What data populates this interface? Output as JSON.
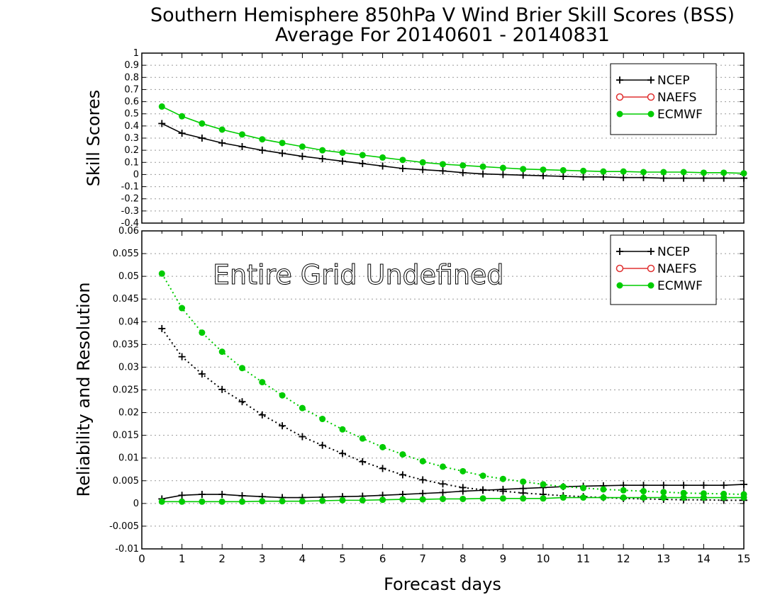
{
  "title_line1": "Southern Hemisphere 850hPa V Wind Brier Skill Scores (BSS)",
  "title_line2": "Average For 20140601 - 20140831",
  "colors": {
    "NCEP": "#000000",
    "NAEFS": "#e03030",
    "ECMWF": "#00cc00"
  },
  "chart_data": [
    {
      "type": "line",
      "ylabel": "Skill Scores",
      "xlabel": "",
      "xlim": [
        0,
        15
      ],
      "ylim": [
        -0.4,
        1
      ],
      "yticks": [
        "-0.4",
        "-0.3",
        "-0.2",
        "-0.1",
        "0",
        "0.1",
        "0.2",
        "0.3",
        "0.4",
        "0.5",
        "0.6",
        "0.7",
        "0.8",
        "0.9",
        "1"
      ],
      "legend": {
        "position": "top-right",
        "entries": [
          "NCEP",
          "NAEFS",
          "ECMWF"
        ]
      },
      "grid": true,
      "x": [
        0.5,
        1,
        1.5,
        2,
        2.5,
        3,
        3.5,
        4,
        4.5,
        5,
        5.5,
        6,
        6.5,
        7,
        7.5,
        8,
        8.5,
        9,
        9.5,
        10,
        10.5,
        11,
        11.5,
        12,
        12.5,
        13,
        13.5,
        14,
        14.5,
        15
      ],
      "series": [
        {
          "name": "NCEP",
          "style": "solid-plus",
          "values": [
            0.42,
            0.34,
            0.3,
            0.26,
            0.23,
            0.2,
            0.175,
            0.15,
            0.13,
            0.11,
            0.09,
            0.07,
            0.05,
            0.04,
            0.03,
            0.015,
            0.005,
            0.0,
            -0.005,
            -0.01,
            -0.015,
            -0.02,
            -0.02,
            -0.025,
            -0.025,
            -0.03,
            -0.03,
            -0.03,
            -0.03,
            -0.03
          ]
        },
        {
          "name": "ECMWF",
          "style": "solid-dot",
          "values": [
            0.56,
            0.48,
            0.42,
            0.37,
            0.33,
            0.29,
            0.26,
            0.23,
            0.2,
            0.18,
            0.16,
            0.14,
            0.12,
            0.1,
            0.085,
            0.075,
            0.065,
            0.055,
            0.045,
            0.04,
            0.035,
            0.03,
            0.025,
            0.025,
            0.02,
            0.02,
            0.02,
            0.015,
            0.015,
            0.01
          ]
        }
      ]
    },
    {
      "type": "line",
      "ylabel": "Reliability and Resolution",
      "xlabel": "Forecast days",
      "xlim": [
        0,
        15
      ],
      "ylim": [
        -0.01,
        0.06
      ],
      "yticks": [
        "-0.01",
        "-0.005",
        "0",
        "0.005",
        "0.01",
        "0.015",
        "0.02",
        "0.025",
        "0.03",
        "0.035",
        "0.04",
        "0.045",
        "0.05",
        "0.055",
        "0.06"
      ],
      "xticks": [
        "0",
        "1",
        "2",
        "3",
        "4",
        "5",
        "6",
        "7",
        "8",
        "9",
        "10",
        "11",
        "12",
        "13",
        "14",
        "15"
      ],
      "annotation": "Entire Grid Undefined",
      "legend": {
        "position": "top-right",
        "entries": [
          "NCEP",
          "NAEFS",
          "ECMWF"
        ]
      },
      "grid": true,
      "x": [
        0.5,
        1,
        1.5,
        2,
        2.5,
        3,
        3.5,
        4,
        4.5,
        5,
        5.5,
        6,
        6.5,
        7,
        7.5,
        8,
        8.5,
        9,
        9.5,
        10,
        10.5,
        11,
        11.5,
        12,
        12.5,
        13,
        13.5,
        14,
        14.5,
        15
      ],
      "series": [
        {
          "name": "NCEP",
          "kind": "reliability",
          "style": "solid-plus",
          "values": [
            0.001,
            0.0018,
            0.002,
            0.002,
            0.0017,
            0.0015,
            0.0013,
            0.0013,
            0.0014,
            0.0015,
            0.0016,
            0.0018,
            0.002,
            0.0022,
            0.0024,
            0.0027,
            0.0029,
            0.0031,
            0.0033,
            0.0035,
            0.0037,
            0.0038,
            0.0039,
            0.004,
            0.004,
            0.004,
            0.004,
            0.004,
            0.004,
            0.0042
          ]
        },
        {
          "name": "NCEP",
          "kind": "resolution",
          "style": "dotted-plus",
          "values": [
            0.0385,
            0.0323,
            0.0285,
            0.0251,
            0.0224,
            0.0195,
            0.0171,
            0.0147,
            0.0128,
            0.011,
            0.0092,
            0.0077,
            0.0063,
            0.0052,
            0.0043,
            0.0035,
            0.003,
            0.0027,
            0.0023,
            0.002,
            0.0017,
            0.0015,
            0.0013,
            0.0011,
            0.001,
            0.0009,
            0.0008,
            0.0008,
            0.0007,
            0.0007
          ]
        },
        {
          "name": "ECMWF",
          "kind": "reliability",
          "style": "solid-dot",
          "values": [
            0.0004,
            0.0004,
            0.0004,
            0.0004,
            0.0004,
            0.0005,
            0.0005,
            0.0005,
            0.0006,
            0.0007,
            0.0007,
            0.0008,
            0.0009,
            0.0009,
            0.001,
            0.001,
            0.0011,
            0.0011,
            0.0011,
            0.0011,
            0.0013,
            0.0013,
            0.0013,
            0.0013,
            0.0013,
            0.0013,
            0.0013,
            0.0013,
            0.0013,
            0.0013
          ]
        },
        {
          "name": "ECMWF",
          "kind": "resolution",
          "style": "dotted-dot",
          "values": [
            0.0506,
            0.043,
            0.0376,
            0.0334,
            0.0298,
            0.0267,
            0.0238,
            0.021,
            0.0186,
            0.0163,
            0.0143,
            0.0124,
            0.0108,
            0.0093,
            0.0081,
            0.0071,
            0.0061,
            0.0054,
            0.0048,
            0.0042,
            0.0037,
            0.0034,
            0.0031,
            0.0029,
            0.0027,
            0.0025,
            0.0023,
            0.0022,
            0.0021,
            0.002
          ]
        }
      ]
    }
  ]
}
